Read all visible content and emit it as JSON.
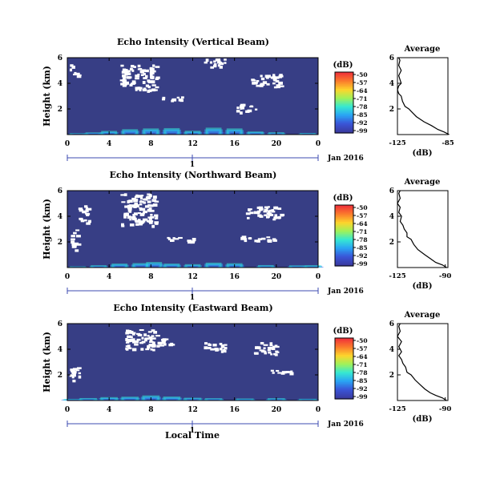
{
  "figure": {
    "xlabel": "Local Time"
  },
  "chart_data": [
    {
      "type": "heatmap",
      "title": "Echo Intensity (Vertical Beam)",
      "ylabel": "Height (km)",
      "xticks": [
        "0",
        "4",
        "8",
        "12",
        "16",
        "20",
        "0"
      ],
      "yticks": [
        "2",
        "4",
        "6"
      ],
      "xlim": [
        0,
        24
      ],
      "ylim": [
        0,
        6
      ],
      "date_axis": {
        "tick": "1",
        "label": "Jan 2016"
      },
      "colorbar": {
        "unit": "(dB)",
        "levels": [
          "-50",
          "-57",
          "-64",
          "-71",
          "-78",
          "-85",
          "-92",
          "-99"
        ],
        "colors": [
          "#f0333a",
          "#fb7d2c",
          "#fdd52c",
          "#9ff25a",
          "#35e8d3",
          "#2aa4f4",
          "#3a55d8",
          "#3a3aa0"
        ]
      },
      "noise_color": "#373e85",
      "columns": [
        {
          "x": 1,
          "h": [
            0.3,
            0.6,
            0.9,
            0.7,
            0.5,
            0.4
          ]
        },
        {
          "x": 2.5,
          "h": [
            0.4,
            1.0,
            1.4,
            1.1,
            0.8,
            0.5
          ]
        },
        {
          "x": 4,
          "h": [
            0.5,
            1.6,
            2.4,
            1.8,
            1.0,
            0.6
          ]
        },
        {
          "x": 6,
          "h": [
            0.6,
            2.5,
            3.5,
            2.8,
            1.8,
            0.9
          ]
        },
        {
          "x": 8,
          "h": [
            1.0,
            3.0,
            4.0,
            3.2,
            2.0,
            1.0
          ]
        },
        {
          "x": 10,
          "h": [
            1.5,
            3.2,
            4.2,
            3.4,
            2.2,
            1.1
          ]
        },
        {
          "x": 12,
          "h": [
            0.7,
            1.7,
            2.5,
            1.8,
            1.0,
            0.6
          ]
        },
        {
          "x": 14,
          "h": [
            1.6,
            3.4,
            4.5,
            3.5,
            2.3,
            1.2
          ]
        },
        {
          "x": 16,
          "h": [
            1.2,
            3.0,
            4.0,
            3.0,
            2.0,
            1.0
          ]
        },
        {
          "x": 18,
          "h": [
            0.6,
            1.5,
            2.0,
            1.4,
            0.9,
            0.5
          ]
        },
        {
          "x": 20,
          "h": [
            0.4,
            1.0,
            1.5,
            1.1,
            0.7,
            0.4
          ]
        },
        {
          "x": 23,
          "h": [
            0.3,
            0.7,
            1.0,
            0.8,
            0.5,
            0.3
          ]
        }
      ],
      "gaps": [
        {
          "x": [
            5,
            8.5
          ],
          "y": [
            3.5,
            5.5
          ]
        },
        {
          "x": [
            17.5,
            20.5
          ],
          "y": [
            3.7,
            4.8
          ]
        },
        {
          "x": [
            0.2,
            1
          ],
          "y": [
            4.5,
            5.5
          ]
        },
        {
          "x": [
            13,
            15
          ],
          "y": [
            5.3,
            6
          ]
        },
        {
          "x": [
            9,
            11
          ],
          "y": [
            2.6,
            3.0
          ]
        },
        {
          "x": [
            16,
            18
          ],
          "y": [
            1.8,
            2.4
          ]
        }
      ],
      "average": {
        "title": "Average",
        "xlabel": "(dB)",
        "xticks": [
          "-125",
          "-85"
        ],
        "xlim": [
          -125,
          -85
        ],
        "yticks": [
          "2",
          "4",
          "6"
        ],
        "ylim": [
          0,
          6
        ],
        "profile": [
          [
            -84,
            0
          ],
          [
            -88,
            0.2
          ],
          [
            -93,
            0.4
          ],
          [
            -98,
            0.7
          ],
          [
            -104,
            1.0
          ],
          [
            -110,
            1.4
          ],
          [
            -114,
            1.8
          ],
          [
            -116,
            2.0
          ],
          [
            -119,
            2.2
          ],
          [
            -121,
            2.6
          ],
          [
            -122,
            3.0
          ],
          [
            -124,
            3.2
          ],
          [
            -125,
            3.5
          ],
          [
            -124,
            3.8
          ],
          [
            -122,
            4.0
          ],
          [
            -123,
            4.3
          ],
          [
            -124,
            4.6
          ],
          [
            -122,
            5.0
          ],
          [
            -124,
            5.4
          ],
          [
            -123,
            5.8
          ],
          [
            -124,
            6.0
          ]
        ]
      }
    },
    {
      "type": "heatmap",
      "title": "Echo Intensity (Northward Beam)",
      "ylabel": "Height (km)",
      "xticks": [
        "0",
        "4",
        "8",
        "12",
        "16",
        "20",
        "0"
      ],
      "yticks": [
        "2",
        "4",
        "6"
      ],
      "xlim": [
        0,
        24
      ],
      "ylim": [
        0,
        6
      ],
      "date_axis": {
        "tick": "1",
        "label": "Jan 2016"
      },
      "colorbar": {
        "unit": "(dB)",
        "levels": [
          "-50",
          "-57",
          "-64",
          "-71",
          "-78",
          "-85",
          "-92",
          "-99"
        ],
        "colors": [
          "#f0333a",
          "#fb7d2c",
          "#fdd52c",
          "#9ff25a",
          "#35e8d3",
          "#2aa4f4",
          "#3a55d8",
          "#3a3aa0"
        ]
      },
      "noise_color": "#373e85",
      "columns": [
        {
          "x": 1,
          "h": [
            0.2,
            0.5,
            0.8,
            0.6,
            0.4,
            0.3
          ]
        },
        {
          "x": 3,
          "h": [
            0.4,
            1.0,
            1.5,
            1.1,
            0.7,
            0.5
          ]
        },
        {
          "x": 5,
          "h": [
            0.6,
            1.8,
            2.6,
            2.0,
            1.2,
            0.7
          ]
        },
        {
          "x": 7,
          "h": [
            0.7,
            2.0,
            2.9,
            2.3,
            1.5,
            0.8
          ]
        },
        {
          "x": 8.3,
          "h": [
            1.2,
            2.6,
            3.6,
            2.8,
            1.8,
            0.9
          ]
        },
        {
          "x": 10,
          "h": [
            0.8,
            1.8,
            2.6,
            2.0,
            1.2,
            0.6
          ]
        },
        {
          "x": 12,
          "h": [
            0.5,
            1.4,
            2.2,
            1.6,
            1.0,
            0.5
          ]
        },
        {
          "x": 14,
          "h": [
            1.0,
            2.5,
            3.2,
            2.4,
            1.5,
            0.8
          ]
        },
        {
          "x": 16,
          "h": [
            0.8,
            2.0,
            2.8,
            2.1,
            1.3,
            0.7
          ]
        },
        {
          "x": 19,
          "h": [
            0.4,
            1.0,
            1.6,
            1.2,
            0.7,
            0.4
          ]
        },
        {
          "x": 22,
          "h": [
            0.4,
            1.0,
            1.4,
            1.1,
            0.7,
            0.4
          ]
        },
        {
          "x": 23.5,
          "h": [
            0.5,
            1.2,
            1.5,
            1.0,
            0.6,
            0.3
          ]
        }
      ],
      "gaps": [
        {
          "x": [
            5,
            8.5
          ],
          "y": [
            3.3,
            5.8
          ]
        },
        {
          "x": [
            1,
            2
          ],
          "y": [
            3.5,
            5.0
          ]
        },
        {
          "x": [
            0.3,
            1.0
          ],
          "y": [
            1.3,
            3.0
          ]
        },
        {
          "x": [
            17,
            20.5
          ],
          "y": [
            3.8,
            4.8
          ]
        },
        {
          "x": [
            16.5,
            20
          ],
          "y": [
            2.1,
            2.5
          ]
        },
        {
          "x": [
            9.5,
            12
          ],
          "y": [
            2.0,
            2.4
          ]
        }
      ],
      "average": {
        "title": "Average",
        "xlabel": "(dB)",
        "xticks": [
          "-125",
          "-90"
        ],
        "xlim": [
          -125,
          -88
        ],
        "yticks": [
          "2",
          "4",
          "6"
        ],
        "ylim": [
          0,
          6
        ],
        "profile": [
          [
            -89,
            0
          ],
          [
            -92,
            0.2
          ],
          [
            -97,
            0.4
          ],
          [
            -101,
            0.7
          ],
          [
            -105,
            1.0
          ],
          [
            -110,
            1.4
          ],
          [
            -113,
            1.8
          ],
          [
            -115,
            2.2
          ],
          [
            -118,
            2.4
          ],
          [
            -118,
            2.7
          ],
          [
            -120,
            3.0
          ],
          [
            -121,
            3.3
          ],
          [
            -123,
            3.6
          ],
          [
            -122,
            4.0
          ],
          [
            -124,
            4.3
          ],
          [
            -123,
            4.7
          ],
          [
            -125,
            5.0
          ],
          [
            -123,
            5.4
          ],
          [
            -124,
            5.8
          ],
          [
            -123,
            6.0
          ]
        ]
      }
    },
    {
      "type": "heatmap",
      "title": "Echo Intensity (Eastward Beam)",
      "ylabel": "Height (km)",
      "xticks": [
        "0",
        "4",
        "8",
        "12",
        "16",
        "20",
        "0"
      ],
      "yticks": [
        "2",
        "4",
        "6"
      ],
      "xlim": [
        0,
        24
      ],
      "ylim": [
        0,
        6
      ],
      "date_axis": {
        "tick": "1",
        "label": "Jan 2016"
      },
      "colorbar": {
        "unit": "(dB)",
        "levels": [
          "-50",
          "-57",
          "-64",
          "-71",
          "-78",
          "-85",
          "-92",
          "-99"
        ],
        "colors": [
          "#f0333a",
          "#fb7d2c",
          "#fdd52c",
          "#9ff25a",
          "#35e8d3",
          "#2aa4f4",
          "#3a55d8",
          "#3a3aa0"
        ]
      },
      "noise_color": "#373e85",
      "columns": [
        {
          "x": 0.5,
          "h": [
            0.3,
            0.7,
            1.0,
            0.8,
            0.5,
            0.3
          ]
        },
        {
          "x": 2,
          "h": [
            0.5,
            1.1,
            1.6,
            1.2,
            0.8,
            0.5
          ]
        },
        {
          "x": 4,
          "h": [
            0.6,
            1.6,
            2.2,
            1.6,
            1.0,
            0.6
          ]
        },
        {
          "x": 6,
          "h": [
            0.6,
            1.8,
            2.5,
            1.9,
            1.2,
            0.7
          ]
        },
        {
          "x": 8,
          "h": [
            1.0,
            2.4,
            3.3,
            2.6,
            1.7,
            0.9
          ]
        },
        {
          "x": 10,
          "h": [
            0.8,
            1.8,
            2.6,
            2.0,
            1.2,
            0.6
          ]
        },
        {
          "x": 12,
          "h": [
            0.5,
            1.3,
            1.8,
            1.4,
            0.9,
            0.5
          ]
        },
        {
          "x": 14,
          "h": [
            0.4,
            1.0,
            1.5,
            1.2,
            0.8,
            0.4
          ]
        },
        {
          "x": 17,
          "h": [
            0.4,
            0.9,
            1.3,
            1.0,
            0.6,
            0.3
          ]
        },
        {
          "x": 20,
          "h": [
            0.5,
            1.1,
            1.5,
            1.2,
            0.7,
            0.4
          ]
        },
        {
          "x": 23,
          "h": [
            0.4,
            0.8,
            1.1,
            0.9,
            0.6,
            0.3
          ]
        }
      ],
      "gaps": [
        {
          "x": [
            5.5,
            8.5
          ],
          "y": [
            4.0,
            5.6
          ]
        },
        {
          "x": [
            8,
            10
          ],
          "y": [
            4.3,
            5.0
          ]
        },
        {
          "x": [
            0.2,
            1.2
          ],
          "y": [
            1.3,
            2.8
          ]
        },
        {
          "x": [
            17.5,
            20
          ],
          "y": [
            3.6,
            4.6
          ]
        },
        {
          "x": [
            19,
            22
          ],
          "y": [
            2.1,
            2.4
          ]
        },
        {
          "x": [
            13,
            15
          ],
          "y": [
            3.8,
            4.6
          ]
        }
      ],
      "average": {
        "title": "Average",
        "xlabel": "(dB)",
        "xticks": [
          "-125",
          "-90"
        ],
        "xlim": [
          -125,
          -88
        ],
        "yticks": [
          "2",
          "4",
          "6"
        ],
        "ylim": [
          0,
          6
        ],
        "profile": [
          [
            -89,
            0
          ],
          [
            -92,
            0.2
          ],
          [
            -97,
            0.4
          ],
          [
            -101,
            0.6
          ],
          [
            -105,
            0.9
          ],
          [
            -108,
            1.2
          ],
          [
            -112,
            1.6
          ],
          [
            -115,
            2.0
          ],
          [
            -118,
            2.2
          ],
          [
            -119,
            2.6
          ],
          [
            -121,
            2.9
          ],
          [
            -122,
            3.2
          ],
          [
            -124,
            3.5
          ],
          [
            -122,
            3.8
          ],
          [
            -124,
            4.2
          ],
          [
            -122,
            4.6
          ],
          [
            -125,
            5.0
          ],
          [
            -123,
            5.4
          ],
          [
            -124,
            5.8
          ],
          [
            -123,
            6.0
          ]
        ]
      }
    }
  ]
}
